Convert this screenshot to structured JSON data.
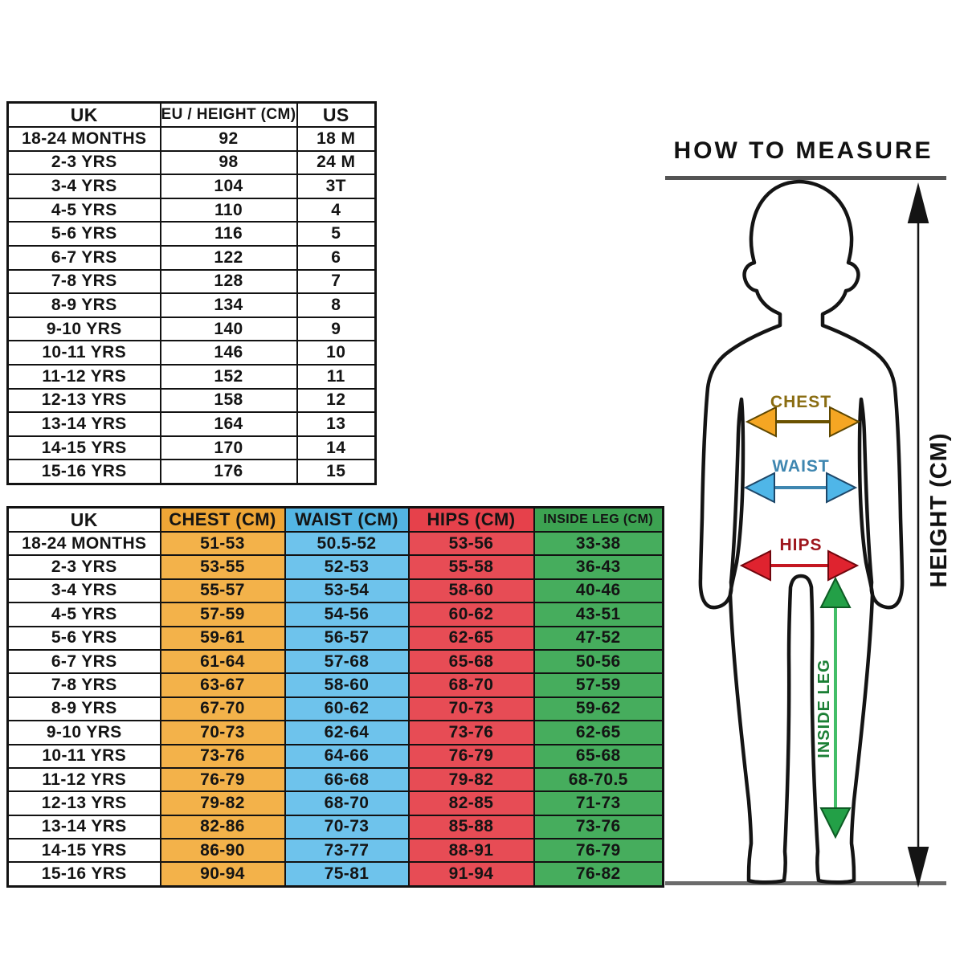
{
  "size_table": {
    "headers": [
      "UK",
      "EU / HEIGHT (CM)",
      "US"
    ],
    "rows": [
      [
        "18-24 MONTHS",
        "92",
        "18 M"
      ],
      [
        "2-3 YRS",
        "98",
        "24 M"
      ],
      [
        "3-4 YRS",
        "104",
        "3T"
      ],
      [
        "4-5 YRS",
        "110",
        "4"
      ],
      [
        "5-6 YRS",
        "116",
        "5"
      ],
      [
        "6-7 YRS",
        "122",
        "6"
      ],
      [
        "7-8 YRS",
        "128",
        "7"
      ],
      [
        "8-9 YRS",
        "134",
        "8"
      ],
      [
        "9-10 YRS",
        "140",
        "9"
      ],
      [
        "10-11 YRS",
        "146",
        "10"
      ],
      [
        "11-12 YRS",
        "152",
        "11"
      ],
      [
        "12-13 YRS",
        "158",
        "12"
      ],
      [
        "13-14 YRS",
        "164",
        "13"
      ],
      [
        "14-15 YRS",
        "170",
        "14"
      ],
      [
        "15-16 YRS",
        "176",
        "15"
      ]
    ]
  },
  "measure_table": {
    "headers": [
      "UK",
      "CHEST (CM)",
      "WAIST (CM)",
      "HIPS (CM)",
      "INSIDE LEG (CM)"
    ],
    "rows": [
      [
        "18-24 MONTHS",
        "51-53",
        "50.5-52",
        "53-56",
        "33-38"
      ],
      [
        "2-3 YRS",
        "53-55",
        "52-53",
        "55-58",
        "36-43"
      ],
      [
        "3-4 YRS",
        "55-57",
        "53-54",
        "58-60",
        "40-46"
      ],
      [
        "4-5 YRS",
        "57-59",
        "54-56",
        "60-62",
        "43-51"
      ],
      [
        "5-6 YRS",
        "59-61",
        "56-57",
        "62-65",
        "47-52"
      ],
      [
        "6-7 YRS",
        "61-64",
        "57-68",
        "65-68",
        "50-56"
      ],
      [
        "7-8 YRS",
        "63-67",
        "58-60",
        "68-70",
        "57-59"
      ],
      [
        "8-9 YRS",
        "67-70",
        "60-62",
        "70-73",
        "59-62"
      ],
      [
        "9-10 YRS",
        "70-73",
        "62-64",
        "73-76",
        "62-65"
      ],
      [
        "10-11 YRS",
        "73-76",
        "64-66",
        "76-79",
        "65-68"
      ],
      [
        "11-12 YRS",
        "76-79",
        "66-68",
        "79-82",
        "68-70.5"
      ],
      [
        "12-13 YRS",
        "79-82",
        "68-70",
        "82-85",
        "71-73"
      ],
      [
        "13-14 YRS",
        "82-86",
        "70-73",
        "85-88",
        "73-76"
      ],
      [
        "14-15 YRS",
        "86-90",
        "73-77",
        "88-91",
        "76-79"
      ],
      [
        "15-16 YRS",
        "90-94",
        "75-81",
        "91-94",
        "76-82"
      ]
    ]
  },
  "diagram": {
    "title": "HOW TO MEASURE",
    "labels": {
      "chest": "CHEST",
      "waist": "WAIST",
      "hips": "HIPS",
      "inside_leg": "INSIDE LEG",
      "height": "HEIGHT (CM)"
    }
  },
  "colors": {
    "chest_header": "#EFA636",
    "chest_cell": "#F3B24A",
    "chest_shaft": "#6B5200",
    "chest_head": "#F5A623",
    "chest_text": "#8A6D12",
    "waist_header": "#53B5E3",
    "waist_cell": "#6EC3EC",
    "waist_shaft": "#3E86B0",
    "waist_head": "#4FB6E8",
    "waist_text": "#3E86B0",
    "hips_header": "#E6414B",
    "hips_cell": "#E74C55",
    "hips_shaft": "#C41722",
    "hips_head": "#DF232F",
    "hips_text": "#9E161D",
    "leg_header": "#3CA251",
    "leg_cell": "#46AD5D",
    "leg_shaft": "#43BE68",
    "leg_head": "#23A047",
    "leg_text": "#1B7F35",
    "ink": "#141414",
    "rule_gray": "#545454"
  }
}
